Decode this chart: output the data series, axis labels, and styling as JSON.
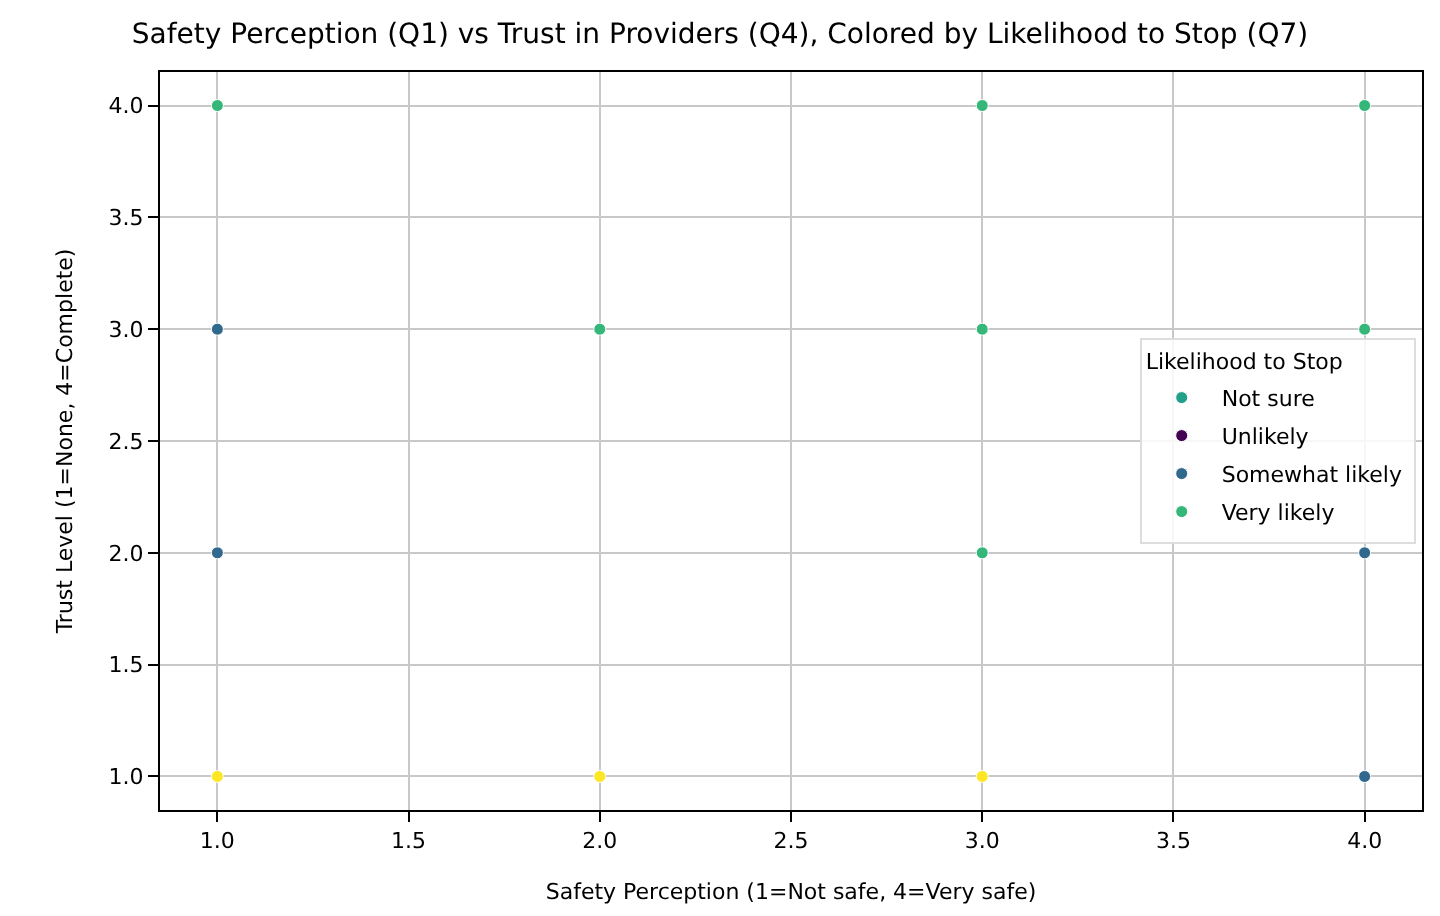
{
  "chart_data": {
    "type": "scatter",
    "title": "Safety Perception (Q1) vs Trust in Providers (Q4), Colored by Likelihood to Stop (Q7)",
    "xlabel": "Safety Perception (1=Not safe, 4=Very safe)",
    "ylabel": "Trust Level (1=None, 4=Complete)",
    "legend_title": "Likelihood to Stop",
    "series": [
      {
        "name": "Not sure",
        "color": "#21a08a"
      },
      {
        "name": "Unlikely",
        "color": "#440154"
      },
      {
        "name": "Somewhat likely",
        "color": "#31688e",
        "x": [
          1,
          1,
          4,
          4
        ],
        "values": [
          3,
          2,
          2,
          1
        ]
      },
      {
        "name": "Very likely",
        "color": "#35b779",
        "x": [
          1,
          2,
          3,
          3,
          3,
          4,
          4
        ],
        "values": [
          4,
          3,
          4,
          3,
          2,
          4,
          3
        ]
      },
      {
        "color": "#fde725",
        "x": [
          1,
          2,
          3
        ],
        "values": [
          1,
          1,
          1
        ]
      }
    ],
    "xlim": [
      0.85,
      4.15
    ],
    "ylim": [
      0.85,
      4.15
    ],
    "xticks": [
      {
        "value": 1,
        "label": "1.0"
      },
      1.5,
      {
        "value": 2,
        "label": "2.0"
      },
      2.5,
      {
        "value": 3,
        "label": "3.0"
      },
      3.5,
      {
        "value": 4,
        "label": "4.0"
      }
    ],
    "yticks": [
      {
        "value": 1,
        "label": "1.0"
      },
      1.5,
      {
        "value": 2,
        "label": "2.0"
      },
      2.5,
      {
        "value": 3,
        "label": "3.0"
      },
      3.5,
      {
        "value": 4,
        "label": "4.0"
      }
    ],
    "grid": true,
    "legend": "right",
    "marker": "circle"
  }
}
